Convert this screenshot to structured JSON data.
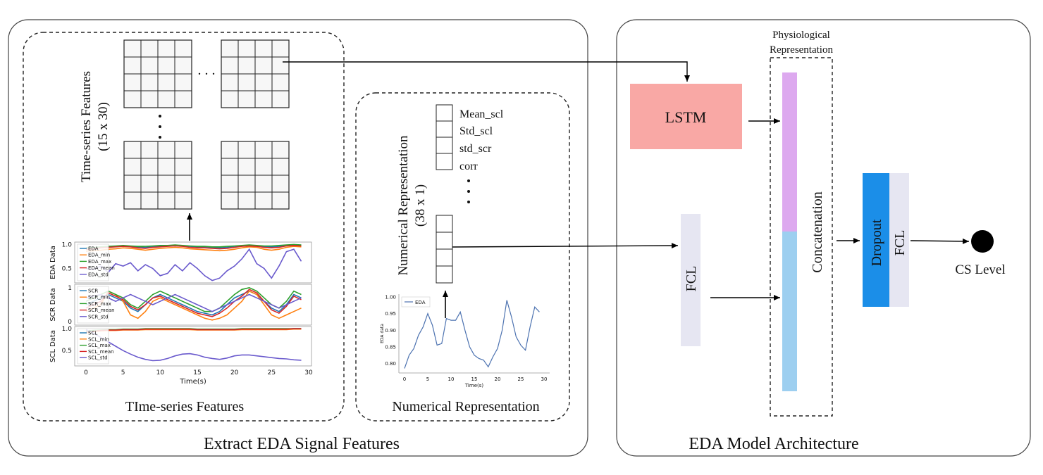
{
  "left_panel": {
    "title": "Extract EDA Signal Features",
    "timeseries_box": {
      "caption": "TIme-series Features",
      "grid_label_line1": "Time-series Features",
      "grid_label_line2": "(15 x 30)",
      "dots_h": ". . .",
      "dots_v": ". . ."
    },
    "numerical_box": {
      "caption": "Numerical Representation",
      "vector_label_line1": "Numerical Representation",
      "vector_label_line2": "(38 x 1)",
      "feature_names": [
        "Mean_scl",
        "Std_scl",
        "std_scr",
        "corr"
      ],
      "dots_v": ". . ."
    },
    "multi_plot": {
      "xlabel": "Time(s)",
      "xticks": [
        "0",
        "5",
        "10",
        "15",
        "20",
        "25",
        "30"
      ],
      "panels": [
        {
          "ylabel": "EDA Data",
          "yticks": [
            "1.0",
            "0.5"
          ],
          "legend": [
            "EDA",
            "EDA_min",
            "EDA_max",
            "EDA_mean",
            "EDA_std"
          ]
        },
        {
          "ylabel": "SCR Data",
          "yticks": [
            "1",
            "0"
          ],
          "legend": [
            "SCR",
            "SCR_min",
            "SCR_max",
            "SCR_mean",
            "SCR_std"
          ]
        },
        {
          "ylabel": "SCL Data",
          "yticks": [
            "1.0",
            "0.5"
          ],
          "legend": [
            "SCL",
            "SCL_min",
            "SCL_max",
            "SCL_mean",
            "SCL_std"
          ]
        }
      ],
      "colors": [
        "#1f77b4",
        "#ff7f0e",
        "#2ca02c",
        "#d62728",
        "#6a5acd"
      ]
    },
    "eda_plot": {
      "legend": "EDA",
      "xlabel": "Time(s)",
      "ylabel": "EDA data",
      "xticks": [
        "0",
        "5",
        "10",
        "15",
        "20",
        "25",
        "30"
      ],
      "yticks": [
        "1.00",
        "0.95",
        "0.90",
        "0.85",
        "0.80"
      ],
      "line_color": "#4c72b0"
    }
  },
  "right_panel": {
    "title": "EDA Model Architecture",
    "physio_line1": "Physiological",
    "physio_line2": "Representation",
    "lstm_label": "LSTM",
    "fcl_label": "FCL",
    "concat_label": "Concatenation",
    "dropout_label": "Dropout",
    "fcl2_label": "FCL",
    "output_label": "CS Level",
    "colors": {
      "lstm": "#f9a8a5",
      "fcl": "#e6e6f2",
      "concat_top": "#dda9ef",
      "concat_bottom": "#9dcff0",
      "dropout": "#1b8ee8",
      "fcl2": "#e6e6f2"
    }
  },
  "chart_data": [
    {
      "type": "line",
      "title": "",
      "xlabel": "Time(s)",
      "ylabel": "EDA data",
      "xlim": [
        0,
        30
      ],
      "ylim": [
        0.78,
        1.0
      ],
      "series": [
        {
          "name": "EDA",
          "x": [
            0,
            1,
            2,
            3,
            4,
            5,
            6,
            7,
            8,
            9,
            10,
            11,
            12,
            13,
            14,
            15,
            16,
            17,
            18,
            19,
            20,
            21,
            22,
            23,
            24,
            25,
            26,
            27,
            28,
            29
          ],
          "values": [
            0.785,
            0.825,
            0.845,
            0.885,
            0.91,
            0.95,
            0.915,
            0.855,
            0.86,
            0.935,
            0.93,
            0.93,
            0.955,
            0.9,
            0.85,
            0.825,
            0.815,
            0.81,
            0.79,
            0.82,
            0.845,
            0.9,
            0.99,
            0.94,
            0.88,
            0.855,
            0.84,
            0.91,
            0.97,
            0.955
          ]
        }
      ]
    }
  ]
}
